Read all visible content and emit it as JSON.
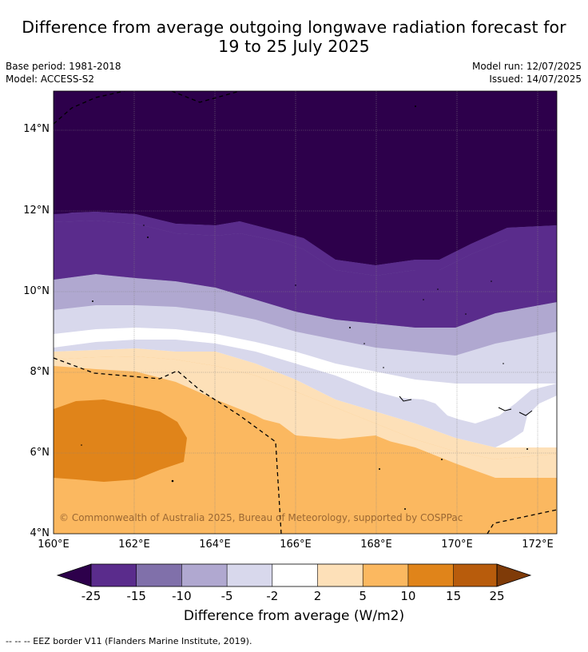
{
  "title_line1": "Difference from average outgoing longwave radiation forecast for",
  "title_line2": "19 to 25 July 2025",
  "meta": {
    "base_period": "Base period: 1981-2018",
    "model": "Model: ACCESS-S2",
    "model_run": "Model run: 12/07/2025",
    "issued": "Issued: 14/07/2025"
  },
  "map": {
    "lat_labels": [
      "14°N",
      "12°N",
      "10°N",
      "8°N",
      "6°N",
      "4°N"
    ],
    "lon_labels": [
      "160°E",
      "162°E",
      "164°E",
      "166°E",
      "168°E",
      "170°E",
      "172°E"
    ],
    "copyright": "© Commonwealth of Australia 2025, Bureau of Meteorology, supported by COSPPac"
  },
  "colorbar": {
    "ticks": [
      "-25",
      "-15",
      "-10",
      "-5",
      "-2",
      "2",
      "5",
      "10",
      "15",
      "25"
    ],
    "colors": [
      "#5a2c8c",
      "#8070aa",
      "#b0a8d0",
      "#d8d8ec",
      "#ffffff",
      "#fde0b8",
      "#fbb860",
      "#e0841a",
      "#b85c0c"
    ],
    "extend_low_color": "#2d004b",
    "extend_high_color": "#7f3b08",
    "title": "Difference from average (W/m2)"
  },
  "footer": "--  --  -- EEZ border V11 (Flanders Marine Institute, 2019)."
}
